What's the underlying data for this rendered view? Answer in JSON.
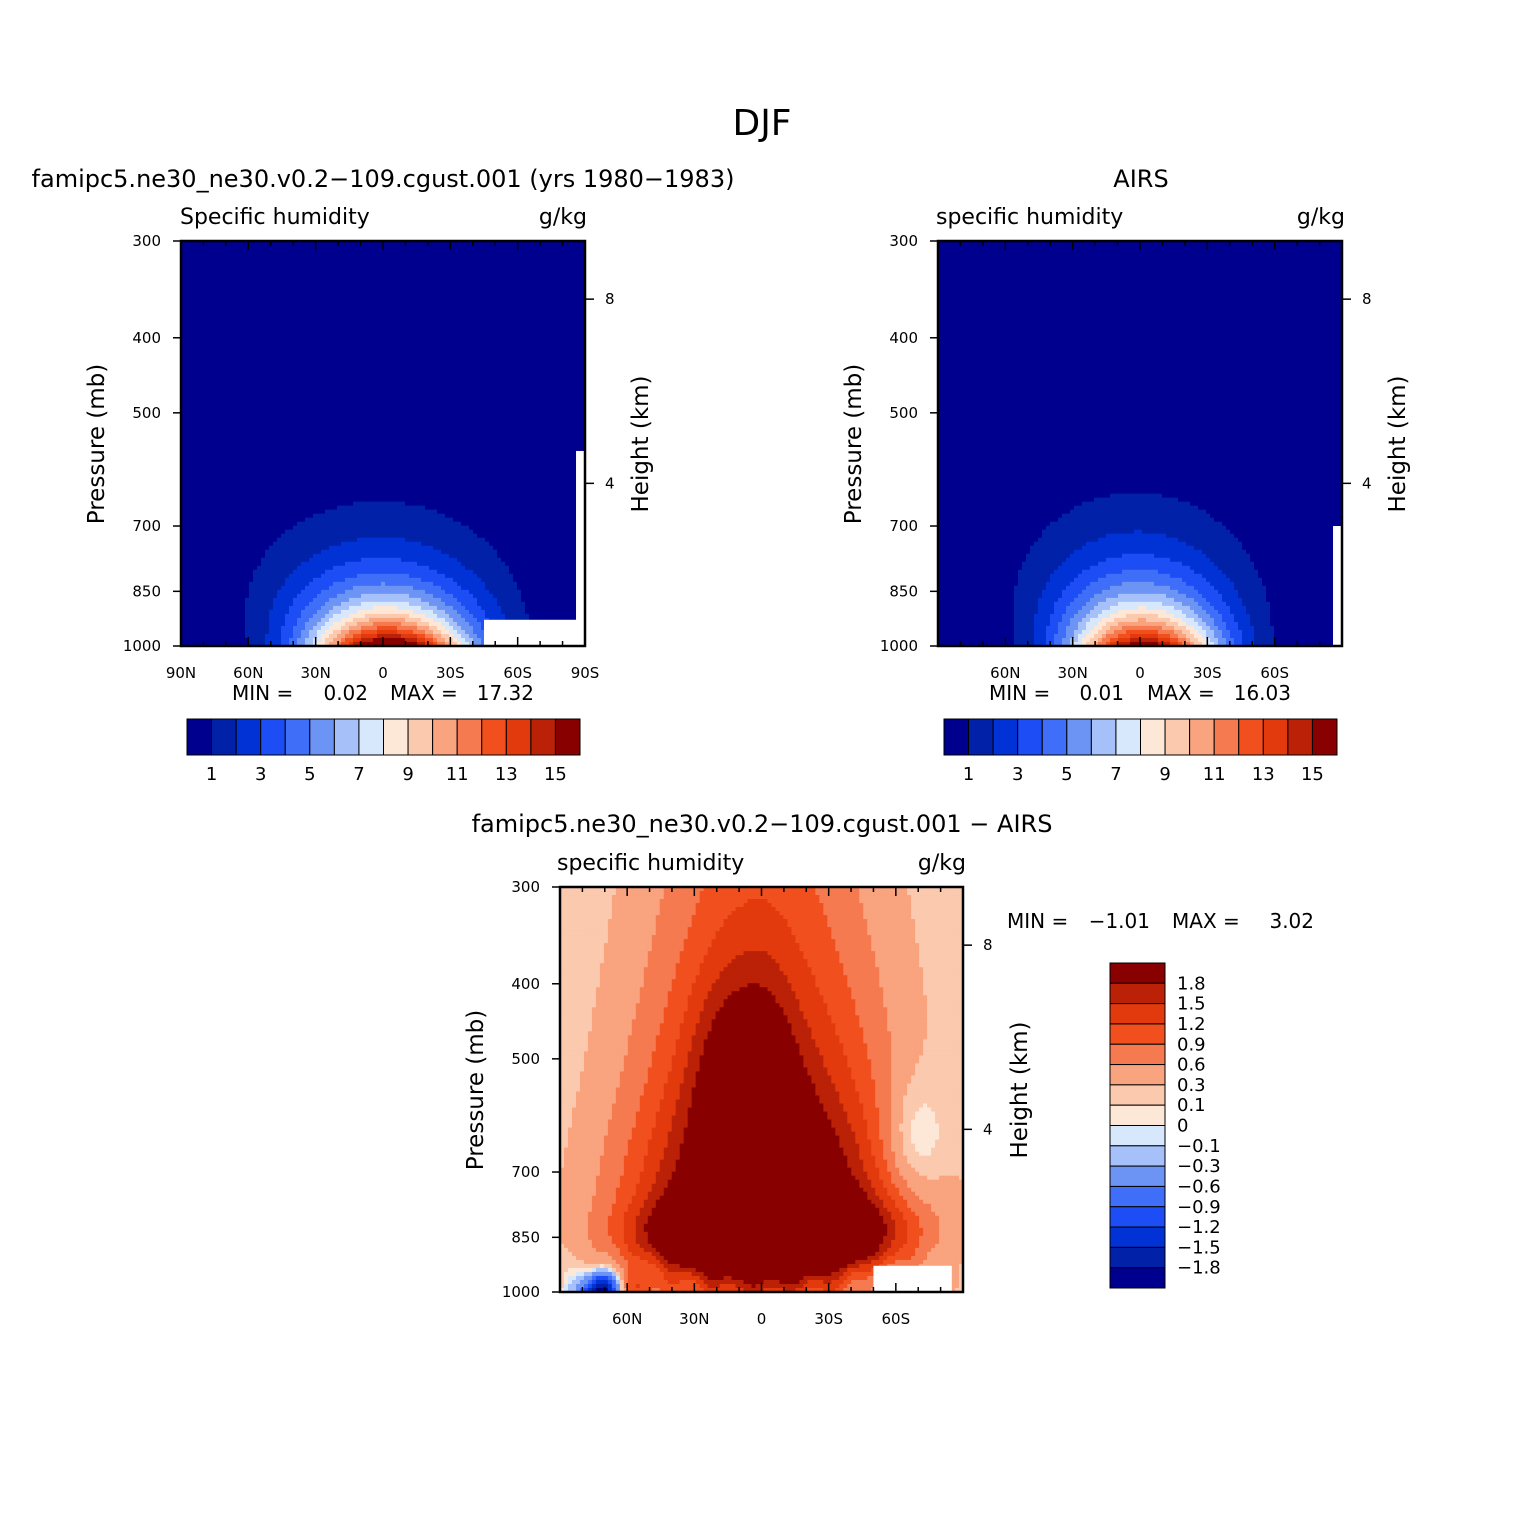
{
  "figure_title": "DJF",
  "colors": {
    "frame": "#000000",
    "missing": "#ffffff"
  },
  "chart_data": [
    {
      "type": "contour",
      "title": "famipc5.ne30_ne30.v0.2−109.cgust.001 (yrs 1980−1983)",
      "left_label": "Specific humidity",
      "right_label": "g/kg",
      "ylabel": "Pressure (mb)",
      "y2label": "Height (km)",
      "xticks": [
        "90N",
        "60N",
        "30N",
        "0",
        "30S",
        "60S",
        "90S"
      ],
      "yticks": [
        "300",
        "400",
        "500",
        "700",
        "850",
        "1000"
      ],
      "y2ticks": [
        "8",
        "4"
      ],
      "xlim": [
        90,
        -90
      ],
      "ylim": [
        1000,
        300
      ],
      "min_label": "MIN =",
      "min": "0.02",
      "max_label": "MAX =",
      "max": "17.32",
      "levels": [
        1,
        2,
        3,
        4,
        5,
        6,
        7,
        8,
        9,
        10,
        11,
        12,
        13,
        14,
        15
      ],
      "colorbar_labels": [
        "1",
        "3",
        "5",
        "7",
        "9",
        "11",
        "13",
        "15"
      ],
      "palette": [
        "#00008e",
        "#0021a8",
        "#0032d6",
        "#1d4df5",
        "#3f6ef8",
        "#6b94f5",
        "#a6c1fa",
        "#d8e8fc",
        "#fde8d7",
        "#fbc9ae",
        "#f9a37f",
        "#f67a4f",
        "#f24f1f",
        "#e23a0c",
        "#bb2106",
        "#880000"
      ],
      "peak": 17.32,
      "peak_lat": -3,
      "vertical_scale": 6.9,
      "width_base": 26,
      "width_gain": 36,
      "upper_tilt": 5,
      "residual": 0.22,
      "missing_boxes": [
        {
          "lat0": -45,
          "lat1": -88,
          "p0": 925,
          "p1": 1000
        },
        {
          "lat0": -86,
          "lat1": -90,
          "p0": 560,
          "p1": 1000
        }
      ]
    },
    {
      "type": "contour",
      "title": "AIRS",
      "left_label": "specific humidity",
      "right_label": "g/kg",
      "ylabel": "Pressure (mb)",
      "y2label": "Height (km)",
      "xticks": [
        "60N",
        "30N",
        "0",
        "30S",
        "60S"
      ],
      "yticks": [
        "300",
        "400",
        "500",
        "700",
        "850",
        "1000"
      ],
      "y2ticks": [
        "8",
        "4"
      ],
      "xlim": [
        90,
        -90
      ],
      "ylim": [
        1000,
        300
      ],
      "min_label": "MIN =",
      "min": "0.01",
      "max_label": "MAX =",
      "max": "16.03",
      "levels": [
        1,
        2,
        3,
        4,
        5,
        6,
        7,
        8,
        9,
        10,
        11,
        12,
        13,
        14,
        15
      ],
      "colorbar_labels": [
        "1",
        "3",
        "5",
        "7",
        "9",
        "11",
        "13",
        "15"
      ],
      "palette": [
        "#00008e",
        "#0021a8",
        "#0032d6",
        "#1d4df5",
        "#3f6ef8",
        "#6b94f5",
        "#a6c1fa",
        "#d8e8fc",
        "#fde8d7",
        "#fbc9ae",
        "#f9a37f",
        "#f67a4f",
        "#f24f1f",
        "#e23a0c",
        "#bb2106",
        "#880000"
      ],
      "peak": 16.03,
      "peak_lat": -2,
      "vertical_scale": 6.3,
      "width_base": 24,
      "width_gain": 32,
      "upper_tilt": 4,
      "residual": 0.2,
      "missing_boxes": [
        {
          "lat0": -86,
          "lat1": -90,
          "p0": 700,
          "p1": 1000
        }
      ]
    },
    {
      "type": "contour",
      "title": "famipc5.ne30_ne30.v0.2−109.cgust.001 − AIRS",
      "left_label": "specific humidity",
      "right_label": "g/kg",
      "ylabel": "Pressure (mb)",
      "y2label": "Height (km)",
      "xticks": [
        "60N",
        "30N",
        "0",
        "30S",
        "60S"
      ],
      "yticks": [
        "300",
        "400",
        "500",
        "700",
        "850",
        "1000"
      ],
      "y2ticks": [
        "8",
        "4"
      ],
      "xlim": [
        90,
        -90
      ],
      "ylim": [
        1000,
        300
      ],
      "min_label": "MIN =",
      "min": "−1.01",
      "max_label": "MAX =",
      "max": "3.02",
      "levels": [
        -1.8,
        -1.5,
        -1.2,
        -0.9,
        -0.6,
        -0.3,
        -0.1,
        0,
        0.1,
        0.3,
        0.6,
        0.9,
        1.2,
        1.5,
        1.8
      ],
      "colorbar_labels": [
        "1.8",
        "1.5",
        "1.2",
        "0.9",
        "0.6",
        "0.3",
        "0.1",
        "0",
        "−0.1",
        "−0.3",
        "−0.6",
        "−0.9",
        "−1.2",
        "−1.5",
        "−1.8"
      ],
      "palette": [
        "#00008e",
        "#0021a8",
        "#0032d6",
        "#1d4df5",
        "#3f6ef8",
        "#6b94f5",
        "#a6c1fa",
        "#d8e8fc",
        "#fde8d7",
        "#fbc9ae",
        "#f9a37f",
        "#f67a4f",
        "#f24f1f",
        "#e23a0c",
        "#bb2106",
        "#880000"
      ],
      "missing_boxes": [
        {
          "lat0": -50,
          "lat1": -85,
          "p0": 925,
          "p1": 1000
        }
      ]
    }
  ]
}
